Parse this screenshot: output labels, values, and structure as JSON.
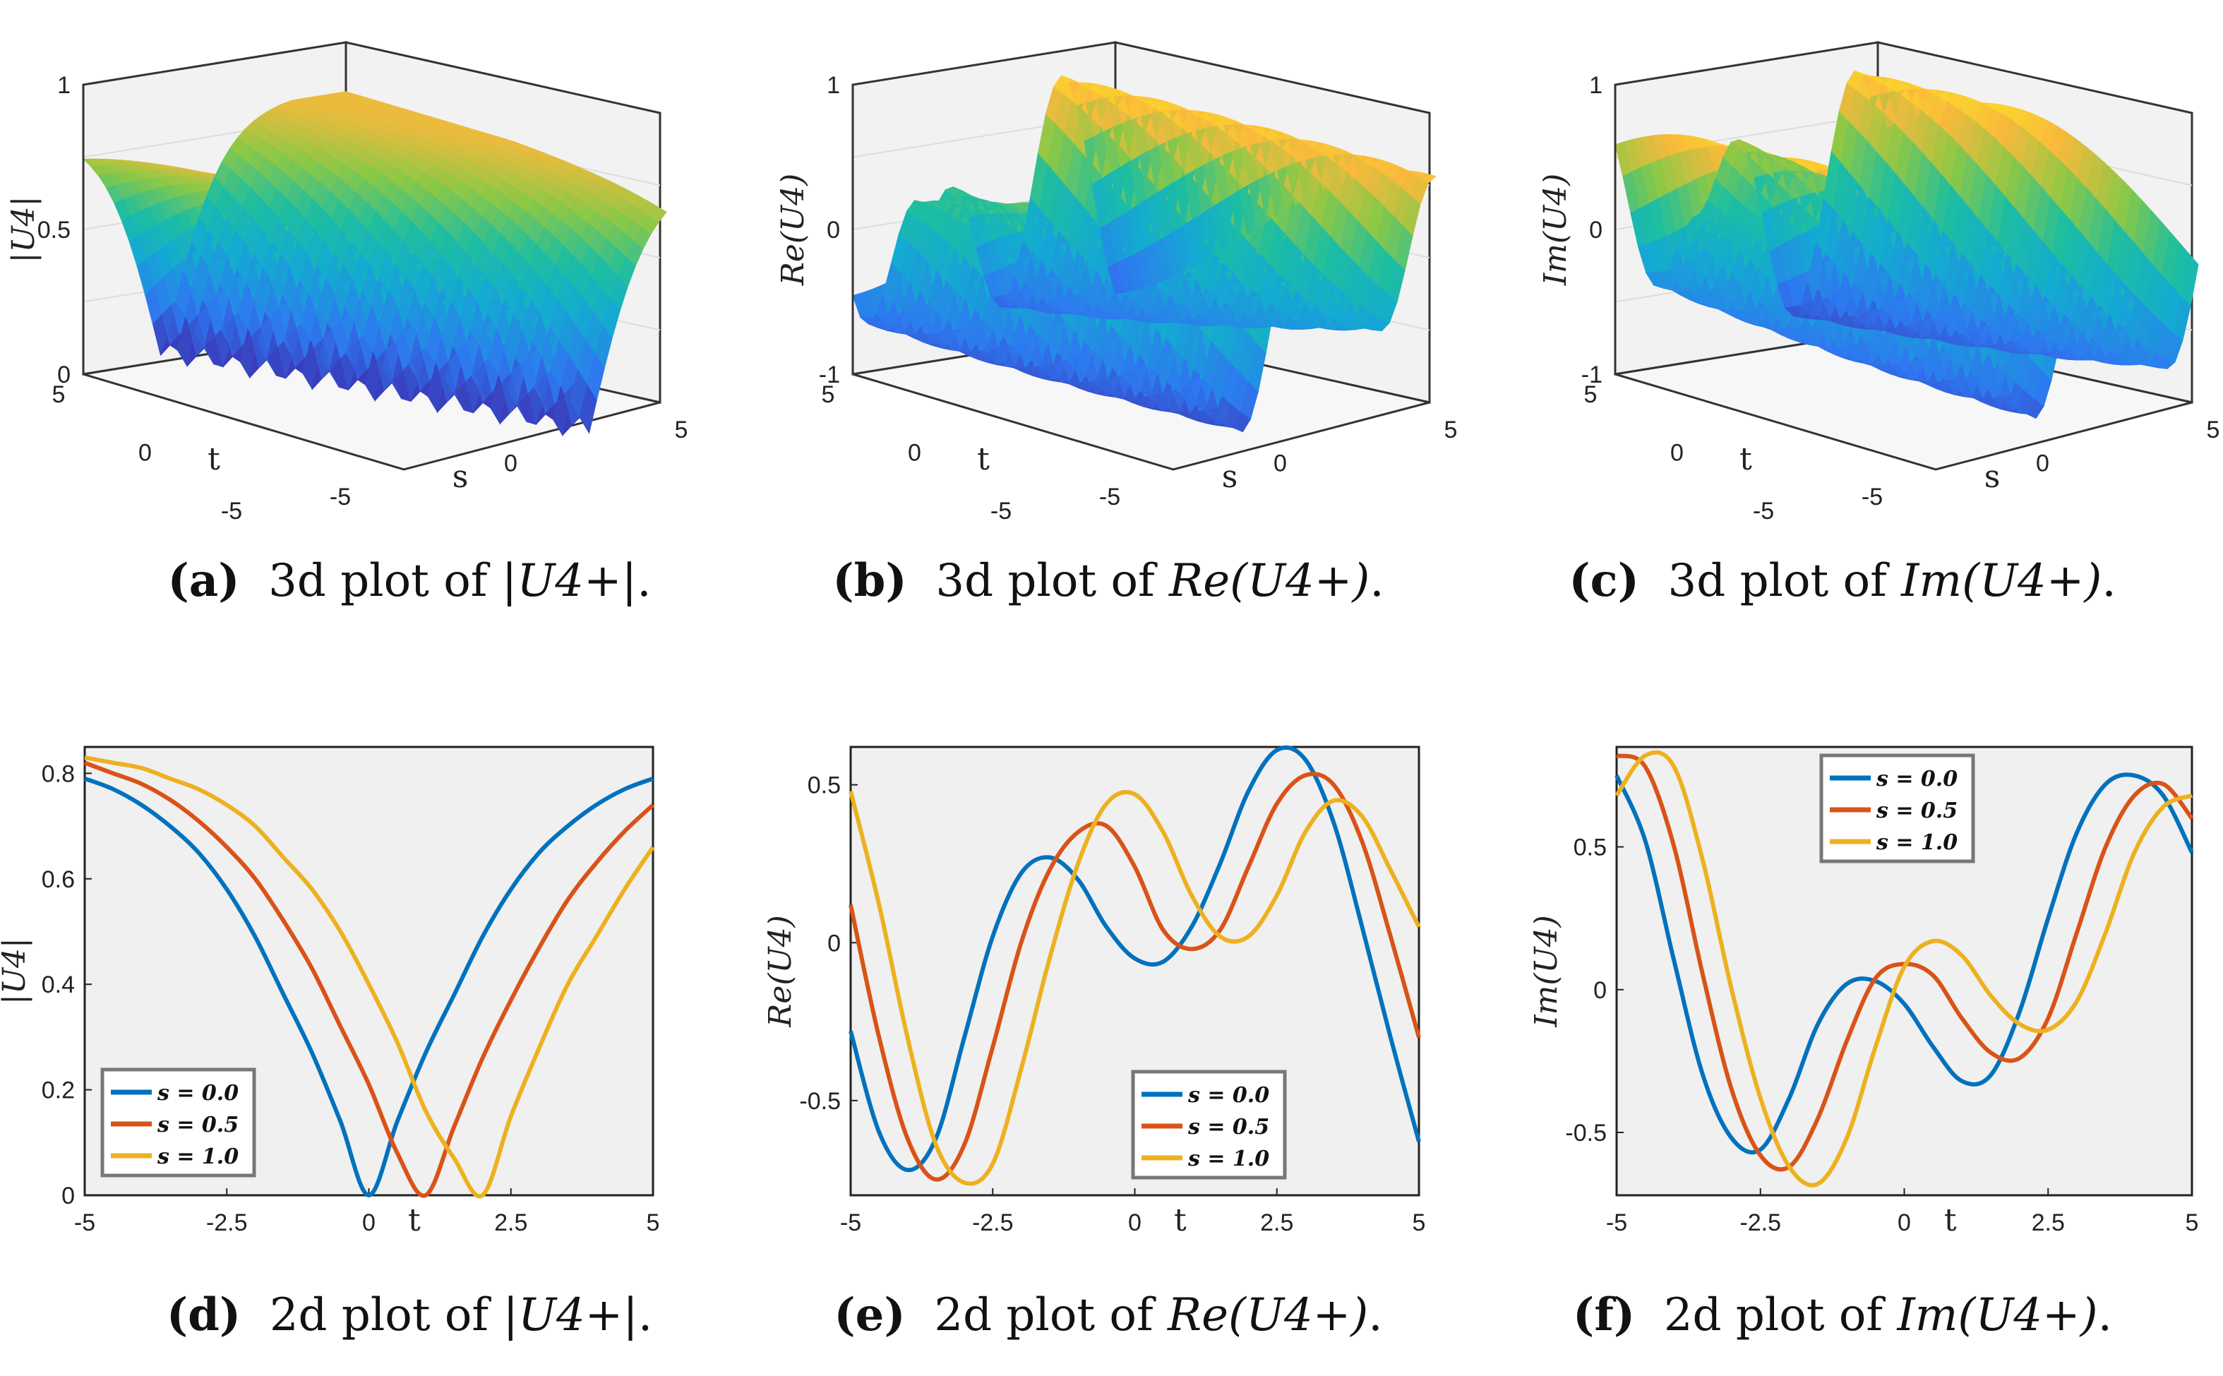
{
  "captions": [
    {
      "letter": "(a)",
      "text": "3d plot of ",
      "math": "|U4+|",
      "end": "."
    },
    {
      "letter": "(b)",
      "text": "3d plot of ",
      "math": "Re(U4+)",
      "end": "."
    },
    {
      "letter": "(c)",
      "text": "3d plot of ",
      "math": "Im(U4+)",
      "end": "."
    },
    {
      "letter": "(d)",
      "text": "2d plot of ",
      "math": "|U4+|",
      "end": "."
    },
    {
      "letter": "(e)",
      "text": "2d plot of ",
      "math": "Re(U4+)",
      "end": "."
    },
    {
      "letter": "(f)",
      "text": "2d plot of ",
      "math": "Im(U4+)",
      "end": "."
    }
  ],
  "colors": {
    "s0": "#0072bd",
    "s05": "#d95319",
    "s1": "#edb120",
    "axes_bg": "#f0f0f0"
  },
  "chart_data": [
    {
      "id": "a",
      "type": "surface",
      "zlabel": "|U4|",
      "xlabel": "t",
      "ylabel": "s",
      "zticks": [
        "0",
        "0.5",
        "1"
      ],
      "tticks": [
        "5",
        "0",
        "-5"
      ],
      "sticks": [
        "-5",
        "0",
        "5"
      ],
      "function": "abs",
      "zlim": [
        0,
        1
      ],
      "tlim": [
        -5,
        5
      ],
      "slim": [
        -5,
        5
      ]
    },
    {
      "id": "b",
      "type": "surface",
      "zlabel": "Re(U4)",
      "xlabel": "t",
      "ylabel": "s",
      "zticks": [
        "-1",
        "0",
        "1"
      ],
      "tticks": [
        "5",
        "0",
        "-5"
      ],
      "sticks": [
        "-5",
        "0",
        "5"
      ],
      "function": "re",
      "zlim": [
        -1,
        1
      ],
      "tlim": [
        -5,
        5
      ],
      "slim": [
        -5,
        5
      ]
    },
    {
      "id": "c",
      "type": "surface",
      "zlabel": "Im(U4)",
      "xlabel": "t",
      "ylabel": "s",
      "zticks": [
        "-1",
        "0",
        "1"
      ],
      "tticks": [
        "5",
        "0",
        "-5"
      ],
      "sticks": [
        "-5",
        "0",
        "5"
      ],
      "function": "im",
      "zlim": [
        -1,
        1
      ],
      "tlim": [
        -5,
        5
      ],
      "slim": [
        -5,
        5
      ]
    },
    {
      "id": "d",
      "type": "line",
      "ylabel": "|U4|",
      "xlabel": "t",
      "xlim": [
        -5,
        5
      ],
      "ylim": [
        0,
        0.85
      ],
      "xticks": [
        "-5",
        "-2.5",
        "0",
        "2.5",
        "5"
      ],
      "yticks": [
        "0",
        "0.2",
        "0.4",
        "0.6",
        "0.8"
      ],
      "legend_loc": "bottom-left",
      "series": [
        {
          "name": "s = 0.0",
          "x": [
            -5,
            -4.5,
            -4,
            -3.5,
            -3,
            -2.5,
            -2,
            -1.5,
            -1,
            -0.5,
            0,
            0.5,
            1,
            1.5,
            2,
            2.5,
            3,
            3.5,
            4,
            4.5,
            5
          ],
          "y": [
            0.79,
            0.77,
            0.74,
            0.7,
            0.65,
            0.58,
            0.49,
            0.38,
            0.27,
            0.14,
            0.0,
            0.14,
            0.27,
            0.38,
            0.49,
            0.58,
            0.65,
            0.7,
            0.74,
            0.77,
            0.79
          ]
        },
        {
          "name": "s = 0.5",
          "x": [
            -5,
            -4.5,
            -4,
            -3.5,
            -3,
            -2.5,
            -2,
            -1.5,
            -1,
            -0.5,
            0,
            0.5,
            1,
            1.5,
            2,
            2.5,
            3,
            3.5,
            4,
            4.5,
            5
          ],
          "y": [
            0.82,
            0.8,
            0.78,
            0.75,
            0.71,
            0.66,
            0.6,
            0.52,
            0.43,
            0.32,
            0.21,
            0.08,
            0.0,
            0.13,
            0.26,
            0.37,
            0.47,
            0.56,
            0.63,
            0.69,
            0.74
          ]
        },
        {
          "name": "s = 1.0",
          "x": [
            -5,
            -4.5,
            -4,
            -3.5,
            -3,
            -2.5,
            -2,
            -1.5,
            -1,
            -0.5,
            0,
            0.5,
            1,
            1.5,
            2,
            2.5,
            3,
            3.5,
            4,
            4.5,
            5
          ],
          "y": [
            0.83,
            0.82,
            0.81,
            0.79,
            0.77,
            0.74,
            0.7,
            0.64,
            0.58,
            0.5,
            0.4,
            0.29,
            0.16,
            0.07,
            0.0,
            0.15,
            0.28,
            0.4,
            0.49,
            0.58,
            0.66
          ]
        }
      ]
    },
    {
      "id": "e",
      "type": "line",
      "ylabel": "Re(U4)",
      "xlabel": "t",
      "xlim": [
        -5,
        5
      ],
      "ylim": [
        -0.8,
        0.62
      ],
      "xticks": [
        "-5",
        "-2.5",
        "0",
        "2.5",
        "5"
      ],
      "yticks": [
        "-0.5",
        "0",
        "0.5"
      ],
      "legend_loc": "bottom-right",
      "series": [
        {
          "name": "s = 0.0",
          "x": [
            -5,
            -4.5,
            -4,
            -3.5,
            -3,
            -2.5,
            -2,
            -1.5,
            -1,
            -0.5,
            0,
            0.5,
            1,
            1.5,
            2,
            2.5,
            3,
            3.5,
            4,
            4.5,
            5
          ],
          "y": [
            -0.28,
            -0.6,
            -0.72,
            -0.62,
            -0.3,
            0.02,
            0.22,
            0.27,
            0.2,
            0.05,
            -0.05,
            -0.06,
            0.05,
            0.25,
            0.48,
            0.61,
            0.58,
            0.38,
            0.05,
            -0.3,
            -0.63
          ]
        },
        {
          "name": "s = 0.5",
          "x": [
            -5,
            -4.5,
            -4,
            -3.5,
            -3,
            -2.5,
            -2,
            -1.5,
            -1,
            -0.5,
            0,
            0.5,
            1,
            1.5,
            2,
            2.5,
            3,
            3.5,
            4,
            4.5,
            5
          ],
          "y": [
            0.12,
            -0.3,
            -0.62,
            -0.75,
            -0.64,
            -0.33,
            0.0,
            0.23,
            0.35,
            0.37,
            0.24,
            0.04,
            -0.02,
            0.04,
            0.24,
            0.44,
            0.53,
            0.5,
            0.32,
            0.02,
            -0.3
          ]
        },
        {
          "name": "s = 1.0",
          "x": [
            -5,
            -4.5,
            -4,
            -3.5,
            -3,
            -2.5,
            -2,
            -1.5,
            -1,
            -0.5,
            0,
            0.5,
            1,
            1.5,
            2,
            2.5,
            3,
            3.5,
            4,
            4.5,
            5
          ],
          "y": [
            0.48,
            0.12,
            -0.3,
            -0.64,
            -0.76,
            -0.7,
            -0.4,
            -0.05,
            0.25,
            0.44,
            0.47,
            0.35,
            0.15,
            0.02,
            0.02,
            0.15,
            0.35,
            0.45,
            0.4,
            0.23,
            0.05
          ]
        }
      ]
    },
    {
      "id": "f",
      "type": "line",
      "ylabel": "Im(U4)",
      "xlabel": "t",
      "xlim": [
        -5,
        5
      ],
      "ylim": [
        -0.72,
        0.85
      ],
      "xticks": [
        "-5",
        "-2.5",
        "0",
        "2.5",
        "5"
      ],
      "yticks": [
        "-0.5",
        "0",
        "0.5"
      ],
      "legend_loc": "top-center",
      "series": [
        {
          "name": "s = 0.0",
          "x": [
            -5,
            -4.5,
            -4,
            -3.5,
            -3,
            -2.5,
            -2,
            -1.5,
            -1,
            -0.5,
            0,
            0.5,
            1,
            1.5,
            2,
            2.5,
            3,
            3.5,
            4,
            4.5,
            5
          ],
          "y": [
            0.75,
            0.52,
            0.1,
            -0.3,
            -0.52,
            -0.56,
            -0.38,
            -0.12,
            0.02,
            0.03,
            -0.05,
            -0.2,
            -0.32,
            -0.3,
            -0.08,
            0.25,
            0.55,
            0.72,
            0.75,
            0.68,
            0.48
          ]
        },
        {
          "name": "s = 0.5",
          "x": [
            -5,
            -4.5,
            -4,
            -3.5,
            -3,
            -2.5,
            -2,
            -1.5,
            -1,
            -0.5,
            0,
            0.5,
            1,
            1.5,
            2,
            2.5,
            3,
            3.5,
            4,
            4.5,
            5
          ],
          "y": [
            0.82,
            0.78,
            0.5,
            0.05,
            -0.35,
            -0.58,
            -0.62,
            -0.45,
            -0.18,
            0.04,
            0.09,
            0.05,
            -0.1,
            -0.22,
            -0.24,
            -0.1,
            0.2,
            0.5,
            0.68,
            0.72,
            0.6
          ]
        },
        {
          "name": "s = 1.0",
          "x": [
            -5,
            -4.5,
            -4,
            -3.5,
            -3,
            -2.5,
            -2,
            -1.5,
            -1,
            -0.5,
            0,
            0.5,
            1,
            1.5,
            2,
            2.5,
            3,
            3.5,
            4,
            4.5,
            5
          ],
          "y": [
            0.68,
            0.82,
            0.78,
            0.45,
            0.0,
            -0.38,
            -0.62,
            -0.68,
            -0.52,
            -0.2,
            0.08,
            0.17,
            0.12,
            -0.02,
            -0.12,
            -0.14,
            -0.04,
            0.2,
            0.48,
            0.64,
            0.68
          ]
        }
      ]
    }
  ]
}
